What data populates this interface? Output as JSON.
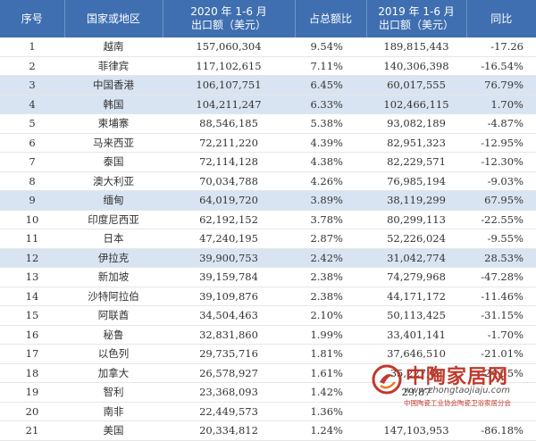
{
  "table": {
    "headers": {
      "rank": "序号",
      "region": "国家或地区",
      "value_2020": [
        "2020 年 1-6 月",
        "出口额（美元）"
      ],
      "share": "占总额比",
      "value_2019": [
        "2019 年 1-6 月",
        "出口额（美元）"
      ],
      "yoy": "同比"
    },
    "rows": [
      {
        "rank": "1",
        "region": "越南",
        "value_2020": "157,060,304",
        "share": "9.54%",
        "value_2019": "189,815,443",
        "yoy": "-17.26",
        "highlight": false
      },
      {
        "rank": "2",
        "region": "菲律宾",
        "value_2020": "117,102,615",
        "share": "7.11%",
        "value_2019": "140,306,398",
        "yoy": "-16.54%",
        "highlight": false
      },
      {
        "rank": "3",
        "region": "中国香港",
        "value_2020": "106,107,751",
        "share": "6.45%",
        "value_2019": "60,017,555",
        "yoy": "76.79%",
        "highlight": true
      },
      {
        "rank": "4",
        "region": "韩国",
        "value_2020": "104,211,247",
        "share": "6.33%",
        "value_2019": "102,466,115",
        "yoy": "1.70%",
        "highlight": true
      },
      {
        "rank": "5",
        "region": "柬埔寨",
        "value_2020": "88,546,185",
        "share": "5.38%",
        "value_2019": "93,082,189",
        "yoy": "-4.87%",
        "highlight": false
      },
      {
        "rank": "6",
        "region": "马来西亚",
        "value_2020": "72,211,220",
        "share": "4.39%",
        "value_2019": "82,951,323",
        "yoy": "-12.95%",
        "highlight": false
      },
      {
        "rank": "7",
        "region": "泰国",
        "value_2020": "72,114,128",
        "share": "4.38%",
        "value_2019": "82,229,571",
        "yoy": "-12.30%",
        "highlight": false
      },
      {
        "rank": "8",
        "region": "澳大利亚",
        "value_2020": "70,034,788",
        "share": "4.26%",
        "value_2019": "76,985,194",
        "yoy": "-9.03%",
        "highlight": false
      },
      {
        "rank": "9",
        "region": "缅甸",
        "value_2020": "64,019,720",
        "share": "3.89%",
        "value_2019": "38,119,299",
        "yoy": "67.95%",
        "highlight": true
      },
      {
        "rank": "10",
        "region": "印度尼西亚",
        "value_2020": "62,192,152",
        "share": "3.78%",
        "value_2019": "80,299,113",
        "yoy": "-22.55%",
        "highlight": false
      },
      {
        "rank": "11",
        "region": "日本",
        "value_2020": "47,240,195",
        "share": "2.87%",
        "value_2019": "52,226,024",
        "yoy": "-9.55%",
        "highlight": false
      },
      {
        "rank": "12",
        "region": "伊拉克",
        "value_2020": "39,900,753",
        "share": "2.42%",
        "value_2019": "31,042,774",
        "yoy": "28.53%",
        "highlight": true
      },
      {
        "rank": "13",
        "region": "新加坡",
        "value_2020": "39,159,784",
        "share": "2.38%",
        "value_2019": "74,279,968",
        "yoy": "-47.28%",
        "highlight": false
      },
      {
        "rank": "14",
        "region": "沙特阿拉伯",
        "value_2020": "39,109,876",
        "share": "2.38%",
        "value_2019": "44,171,172",
        "yoy": "-11.46%",
        "highlight": false
      },
      {
        "rank": "15",
        "region": "阿联酋",
        "value_2020": "34,504,463",
        "share": "2.10%",
        "value_2019": "50,113,425",
        "yoy": "-31.15%",
        "highlight": false
      },
      {
        "rank": "16",
        "region": "秘鲁",
        "value_2020": "32,831,860",
        "share": "1.99%",
        "value_2019": "33,401,141",
        "yoy": "-1.70%",
        "highlight": false
      },
      {
        "rank": "17",
        "region": "以色列",
        "value_2020": "29,735,716",
        "share": "1.81%",
        "value_2019": "37,646,510",
        "yoy": "-21.01%",
        "highlight": false
      },
      {
        "rank": "18",
        "region": "加拿大",
        "value_2020": "26,578,927",
        "share": "1.61%",
        "value_2019": "35,227,40",
        "yoy": "-24.55%",
        "highlight": false
      },
      {
        "rank": "19",
        "region": "智利",
        "value_2020": "23,368,093",
        "share": "1.42%",
        "value_2019": "29,87",
        "yoy": "",
        "highlight": false
      },
      {
        "rank": "20",
        "region": "南非",
        "value_2020": "22,449,573",
        "share": "1.36%",
        "value_2019": "",
        "yoy": "",
        "highlight": false
      },
      {
        "rank": "21",
        "region": "美国",
        "value_2020": "20,334,812",
        "share": "1.24%",
        "value_2019": "147,103,953",
        "yoy": "-86.18%",
        "highlight": false
      }
    ]
  },
  "watermark": {
    "title": "中陶家居网",
    "url": "www.zhongtaojiaju.com",
    "subtitle": "中国陶瓷工业协会陶瓷卫浴家居分会",
    "logo_icon": "red-swirl-logo-icon"
  },
  "colors": {
    "header_bg": "#3f6fb0",
    "highlight_row": "#d9e4f2",
    "brand_red": "#c0392b"
  }
}
